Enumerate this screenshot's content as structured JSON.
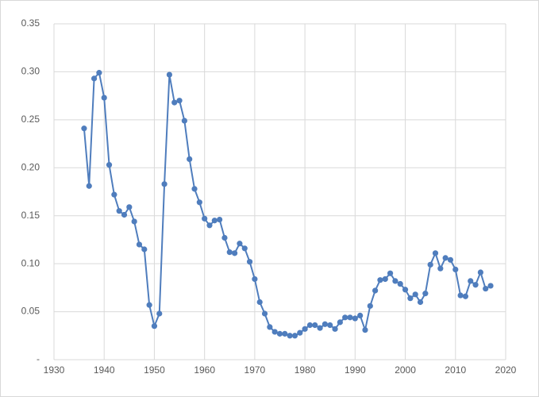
{
  "chart_data": {
    "type": "line",
    "x": [
      1936,
      1937,
      1938,
      1939,
      1940,
      1941,
      1942,
      1943,
      1944,
      1945,
      1946,
      1947,
      1948,
      1949,
      1950,
      1951,
      1952,
      1953,
      1954,
      1955,
      1956,
      1957,
      1958,
      1959,
      1960,
      1961,
      1962,
      1963,
      1964,
      1965,
      1966,
      1967,
      1968,
      1969,
      1970,
      1971,
      1972,
      1973,
      1974,
      1975,
      1976,
      1977,
      1978,
      1979,
      1980,
      1981,
      1982,
      1983,
      1984,
      1985,
      1986,
      1987,
      1988,
      1989,
      1990,
      1991,
      1992,
      1993,
      1994,
      1995,
      1996,
      1997,
      1998,
      1999,
      2000,
      2001,
      2002,
      2003,
      2004,
      2005,
      2006,
      2007,
      2008,
      2009,
      2010,
      2011,
      2012,
      2013,
      2014,
      2015,
      2016,
      2017
    ],
    "values": [
      0.241,
      0.181,
      0.293,
      0.299,
      0.273,
      0.203,
      0.172,
      0.155,
      0.151,
      0.159,
      0.144,
      0.12,
      0.115,
      0.057,
      0.035,
      0.048,
      0.183,
      0.297,
      0.268,
      0.27,
      0.249,
      0.209,
      0.178,
      0.164,
      0.147,
      0.14,
      0.145,
      0.146,
      0.127,
      0.112,
      0.111,
      0.121,
      0.116,
      0.102,
      0.084,
      0.06,
      0.048,
      0.034,
      0.029,
      0.027,
      0.027,
      0.025,
      0.025,
      0.028,
      0.032,
      0.036,
      0.036,
      0.033,
      0.037,
      0.036,
      0.032,
      0.039,
      0.044,
      0.044,
      0.043,
      0.046,
      0.031,
      0.056,
      0.072,
      0.083,
      0.084,
      0.09,
      0.082,
      0.079,
      0.073,
      0.064,
      0.068,
      0.06,
      0.069,
      0.099,
      0.111,
      0.095,
      0.106,
      0.104,
      0.094,
      0.067,
      0.066,
      0.082,
      0.078,
      0.091,
      0.074,
      0.077
    ],
    "color": "#4f7dbd",
    "xlim": [
      1930,
      2020
    ],
    "xticks": [
      1930,
      1940,
      1950,
      1960,
      1970,
      1980,
      1990,
      2000,
      2010,
      2020
    ],
    "ylim": [
      0,
      0.35
    ],
    "yticks": [
      {
        "value": 0,
        "label": "-"
      },
      0.05,
      {
        "value": 0.1,
        "label": "0.10"
      },
      0.15,
      {
        "value": 0.2,
        "label": "0.20"
      },
      0.25,
      {
        "value": 0.3,
        "label": "0.30"
      },
      0.35
    ],
    "grid": true
  }
}
